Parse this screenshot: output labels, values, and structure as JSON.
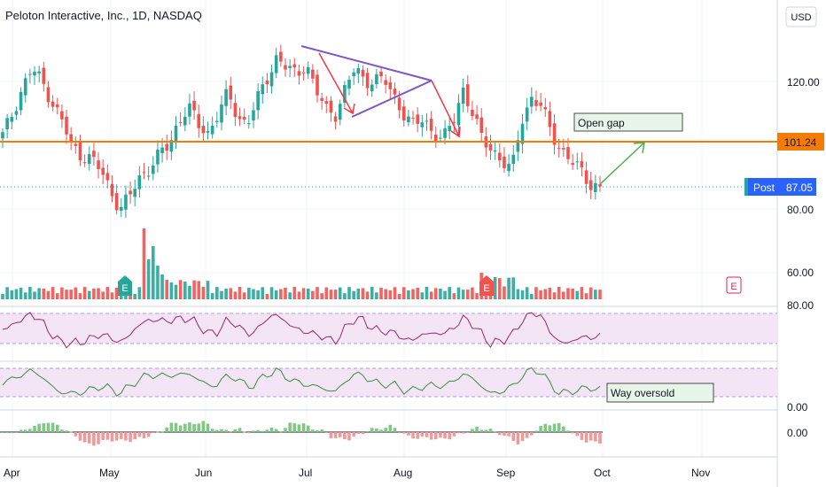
{
  "header": {
    "title": "Peloton Interactive, Inc., 1D, NASDAQ"
  },
  "currency_button": "USD",
  "colors": {
    "up": "#26a69a",
    "down": "#ef5350",
    "level": "#f57c00",
    "triangle": "#7e57c2",
    "arrow_red": "#f23645",
    "arrow_green": "#4caf50",
    "rsi_line": "#9c27b0",
    "osc_line": "#388e3c",
    "band": "#f3e5f5",
    "note_fill": "#e8f5e9",
    "post_badge": "#2962ff"
  },
  "chart_data": {
    "type": "candlestick",
    "price_axis": {
      "ticks": [
        "120.00",
        "80.00",
        "60.00"
      ]
    },
    "time_axis": {
      "ticks": [
        "Apr",
        "May",
        "Jun",
        "Jul",
        "Aug",
        "Sep",
        "Oct",
        "Nov"
      ]
    },
    "price_labels": {
      "level": {
        "label": "101.24",
        "value": 101.24
      },
      "post": {
        "label": "Post",
        "value": "87.05"
      }
    },
    "pane_labels": {
      "rsi_top": "80.00",
      "osc_bottom": "0.00",
      "macd_zero": "0.00"
    },
    "earnings_markers": [
      "E",
      "E",
      "E"
    ],
    "annotations": {
      "gap_note": "Open gap",
      "oversold_note": "Way oversold"
    },
    "candles_close_sampled": [
      103,
      110,
      118,
      124,
      120,
      114,
      108,
      100,
      97,
      96,
      92,
      86,
      80,
      84,
      90,
      93,
      97,
      100,
      108,
      112,
      106,
      104,
      110,
      116,
      109,
      107,
      114,
      121,
      128,
      124,
      122,
      126,
      117,
      111,
      110,
      118,
      124,
      120,
      121,
      120,
      115,
      110,
      106,
      108,
      104,
      102,
      107,
      118,
      110,
      101,
      99,
      95,
      92,
      108,
      115,
      112,
      104,
      99,
      95,
      92,
      88,
      87.05
    ]
  }
}
